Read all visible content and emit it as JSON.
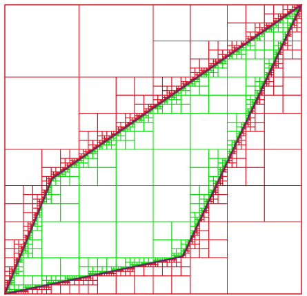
{
  "diagram": {
    "kind": "adaptive quadtree subdivision around a closed curve",
    "colors": {
      "background": "#ffffff",
      "outside_cells": "#e01020",
      "inside_cells": "#00e000",
      "boundary": "#5a2a6a"
    },
    "boundary_vertices_domain": [
      [
        0.0,
        0.0
      ],
      [
        0.6,
        0.13
      ],
      [
        1.0,
        1.0
      ],
      [
        0.16,
        0.4
      ]
    ],
    "subdivision": {
      "max_depth": 8,
      "top_level_split": "2x2",
      "inside_fill": "none",
      "outside_fill": "none"
    }
  }
}
